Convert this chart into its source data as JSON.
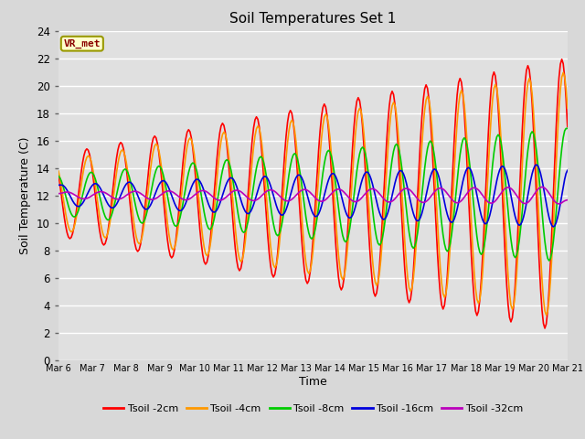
{
  "title": "Soil Temperatures Set 1",
  "xlabel": "Time",
  "ylabel": "Soil Temperature (C)",
  "ylim": [
    0,
    24
  ],
  "background_color": "#d8d8d8",
  "plot_bg_color": "#e0e0e0",
  "vr_met_label": "VR_met",
  "x_tick_labels": [
    "Mar 6",
    "Mar 7",
    "Mar 8",
    "Mar 9",
    "Mar 10",
    "Mar 11",
    "Mar 12",
    "Mar 13",
    "Mar 14",
    "Mar 15",
    "Mar 16",
    "Mar 17",
    "Mar 18",
    "Mar 19",
    "Mar 20",
    "Mar 21"
  ],
  "series_names": [
    "Tsoil -2cm",
    "Tsoil -4cm",
    "Tsoil -8cm",
    "Tsoil -16cm",
    "Tsoil -32cm"
  ],
  "series_colors": [
    "#ff0000",
    "#ff9900",
    "#00cc00",
    "#0000dd",
    "#bb00bb"
  ]
}
